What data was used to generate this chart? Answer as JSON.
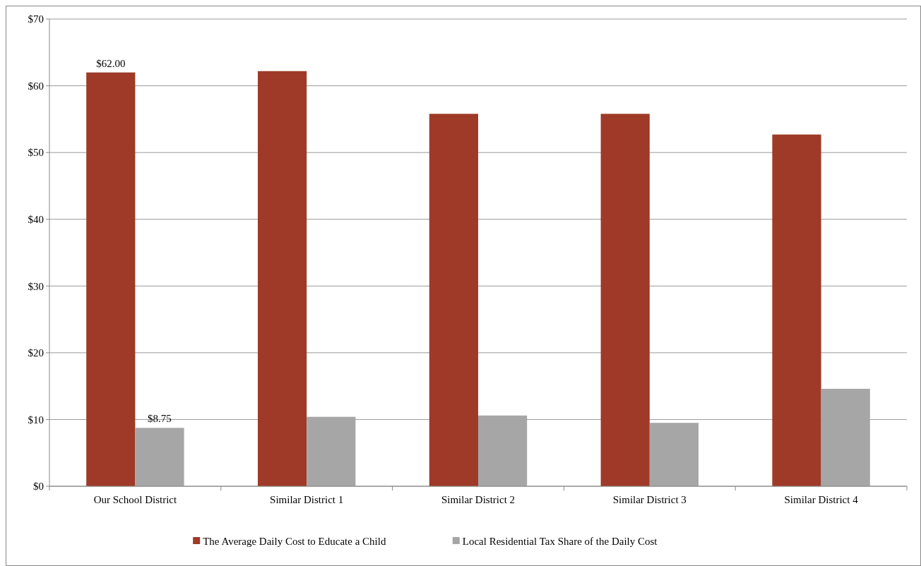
{
  "chart_data": {
    "type": "bar",
    "categories": [
      "Our School District",
      "Similar District 1",
      "Similar District 2",
      "Similar District 3",
      "Similar District 4"
    ],
    "series": [
      {
        "name": "The Average Daily Cost to Educate a Child",
        "color": "#9e3a27",
        "values": [
          62,
          62.2,
          55.8,
          55.8,
          52.7
        ],
        "value_labels": [
          "$62.00",
          null,
          null,
          null,
          null
        ]
      },
      {
        "name": "Local Residential Tax Share of the Daily Cost",
        "color": "#a6a6a6",
        "values": [
          8.75,
          10.4,
          10.6,
          9.5,
          14.6
        ],
        "value_labels": [
          "$8.75",
          null,
          null,
          null,
          null
        ]
      }
    ],
    "ylim": [
      0,
      70
    ],
    "yticks": [
      {
        "value": 0,
        "label": "$0"
      },
      {
        "value": 10,
        "label": "$10"
      },
      {
        "value": 20,
        "label": "$20"
      },
      {
        "value": 30,
        "label": "$30"
      },
      {
        "value": 40,
        "label": "$40"
      },
      {
        "value": 50,
        "label": "$50"
      },
      {
        "value": 60,
        "label": "$60"
      },
      {
        "value": 70,
        "label": "$70"
      }
    ],
    "grid": "y",
    "legend": "bottom"
  }
}
